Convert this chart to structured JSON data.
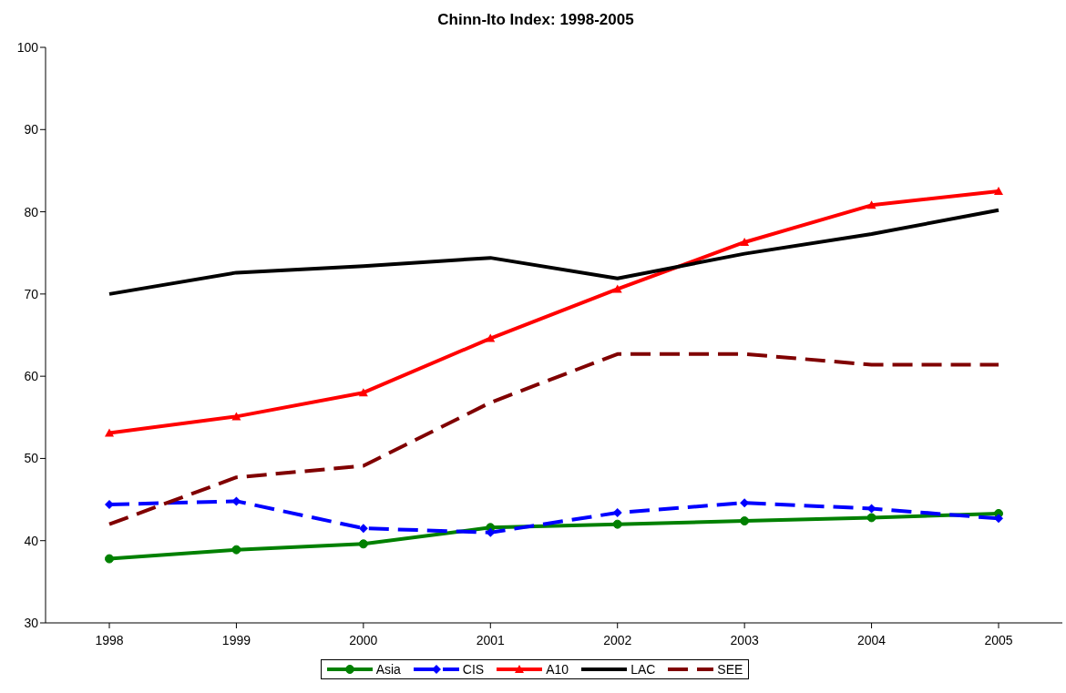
{
  "chart_data": {
    "type": "line",
    "title": "Chinn-Ito Index: 1998-2005",
    "categories": [
      "1998",
      "1999",
      "2000",
      "2001",
      "2002",
      "2003",
      "2004",
      "2005"
    ],
    "series": [
      {
        "name": "Asia",
        "color": "#008000",
        "marker": "circle",
        "line_style": "solid",
        "values": [
          37.8,
          38.9,
          39.6,
          41.6,
          42.0,
          42.4,
          42.8,
          43.3
        ]
      },
      {
        "name": "CIS",
        "color": "#0000ff",
        "marker": "diamond",
        "line_style": "dashed",
        "values": [
          44.4,
          44.8,
          41.5,
          41.0,
          43.4,
          44.6,
          43.9,
          42.7
        ]
      },
      {
        "name": "A10",
        "color": "#ff0000",
        "marker": "triangle",
        "line_style": "solid",
        "values": [
          53.1,
          55.1,
          58.0,
          64.6,
          70.6,
          76.3,
          80.8,
          82.5
        ]
      },
      {
        "name": "LAC",
        "color": "#000000",
        "marker": "none",
        "line_style": "solid",
        "values": [
          70.0,
          72.6,
          73.4,
          74.4,
          71.9,
          74.9,
          77.3,
          80.2
        ]
      },
      {
        "name": "SEE",
        "color": "#800000",
        "marker": "none",
        "line_style": "dashed",
        "values": [
          42.0,
          47.7,
          49.1,
          56.8,
          62.7,
          62.7,
          61.4,
          61.4
        ]
      }
    ],
    "ylim": [
      30,
      100
    ],
    "yticks": [
      30,
      40,
      50,
      60,
      70,
      80,
      90,
      100
    ],
    "grid": false,
    "legend": "bottom"
  }
}
